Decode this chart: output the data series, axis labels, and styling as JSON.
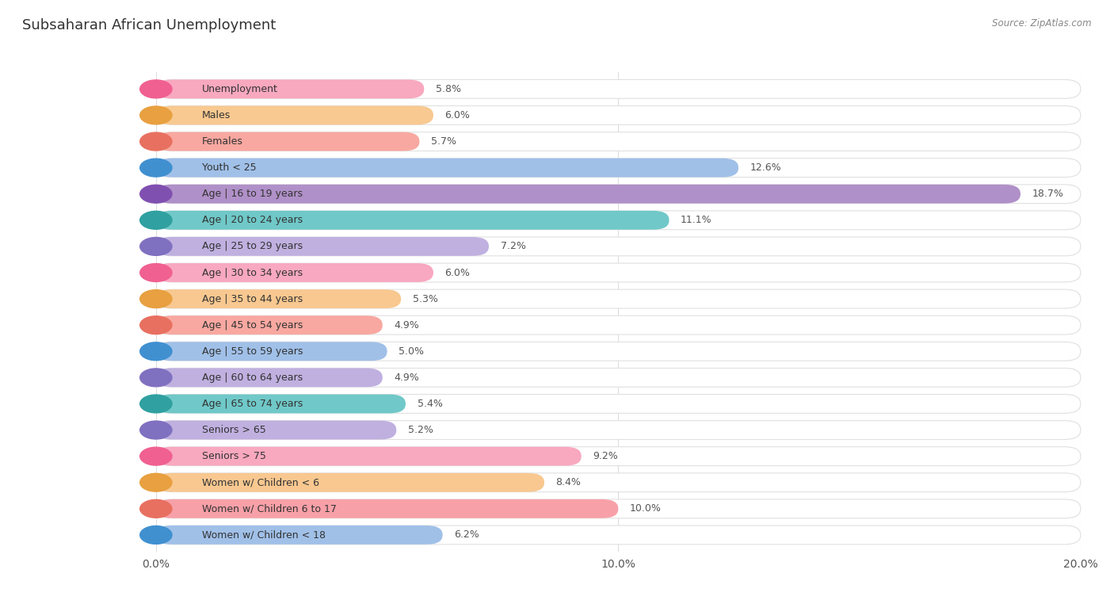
{
  "title": "Subsaharan African Unemployment",
  "source": "Source: ZipAtlas.com",
  "categories": [
    "Unemployment",
    "Males",
    "Females",
    "Youth < 25",
    "Age | 16 to 19 years",
    "Age | 20 to 24 years",
    "Age | 25 to 29 years",
    "Age | 30 to 34 years",
    "Age | 35 to 44 years",
    "Age | 45 to 54 years",
    "Age | 55 to 59 years",
    "Age | 60 to 64 years",
    "Age | 65 to 74 years",
    "Seniors > 65",
    "Seniors > 75",
    "Women w/ Children < 6",
    "Women w/ Children 6 to 17",
    "Women w/ Children < 18"
  ],
  "values": [
    5.8,
    6.0,
    5.7,
    12.6,
    18.7,
    11.1,
    7.2,
    6.0,
    5.3,
    4.9,
    5.0,
    4.9,
    5.4,
    5.2,
    9.2,
    8.4,
    10.0,
    6.2
  ],
  "bar_colors": [
    "#F8A8BF",
    "#F8C990",
    "#F8A8A0",
    "#A0C0E8",
    "#B090C8",
    "#70C8C8",
    "#C0B0E0",
    "#F8A8C0",
    "#F8C890",
    "#F8A8A0",
    "#A0C0E8",
    "#C0B0E0",
    "#70C8C8",
    "#C0B0E0",
    "#F8A8BF",
    "#F8C890",
    "#F8A0A8",
    "#A0C0E8"
  ],
  "dot_colors": [
    "#F06090",
    "#E8A040",
    "#E87060",
    "#4090D0",
    "#8050B0",
    "#30A0A0",
    "#8070C0",
    "#F06090",
    "#E8A040",
    "#E87060",
    "#4090D0",
    "#8070C0",
    "#30A0A0",
    "#8070C0",
    "#F06090",
    "#E8A040",
    "#E87060",
    "#4090D0"
  ],
  "xlim": [
    0,
    20
  ],
  "xticks": [
    0.0,
    10.0,
    20.0
  ],
  "xtick_labels": [
    "0.0%",
    "10.0%",
    "20.0%"
  ],
  "bg_color": "#ffffff",
  "bar_bg_color": "#eeeeee",
  "grid_color": "#dddddd",
  "title_fontsize": 13,
  "label_fontsize": 9,
  "value_fontsize": 9
}
